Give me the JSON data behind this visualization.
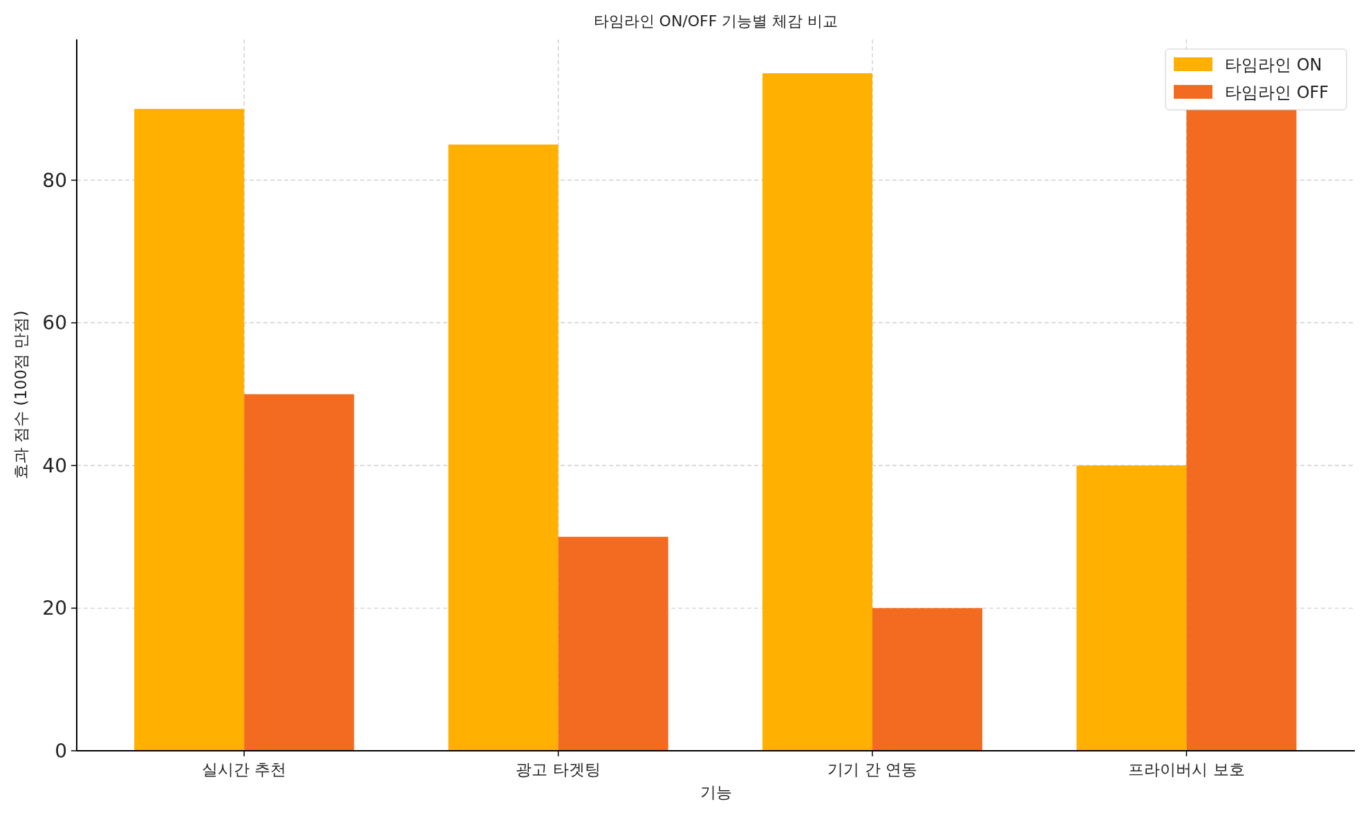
{
  "chart_data": {
    "type": "bar",
    "title": "타임라인 ON/OFF 기능별 체감 비교",
    "xlabel": "기능",
    "ylabel": "효과 점수 (100점 만점)",
    "categories": [
      "실시간 추천",
      "광고 타겟팅",
      "기기 간 연동",
      "프라이버시 보호"
    ],
    "series": [
      {
        "name": "타임라인 ON",
        "color": "#ffb000",
        "values": [
          90,
          85,
          95,
          40
        ]
      },
      {
        "name": "타임라인 OFF",
        "color": "#f26b21",
        "values": [
          50,
          30,
          20,
          90
        ]
      }
    ],
    "ylim": [
      0,
      99.75
    ],
    "yticks": [
      0,
      20,
      40,
      60,
      80
    ],
    "grid": true,
    "legend": "top right"
  }
}
